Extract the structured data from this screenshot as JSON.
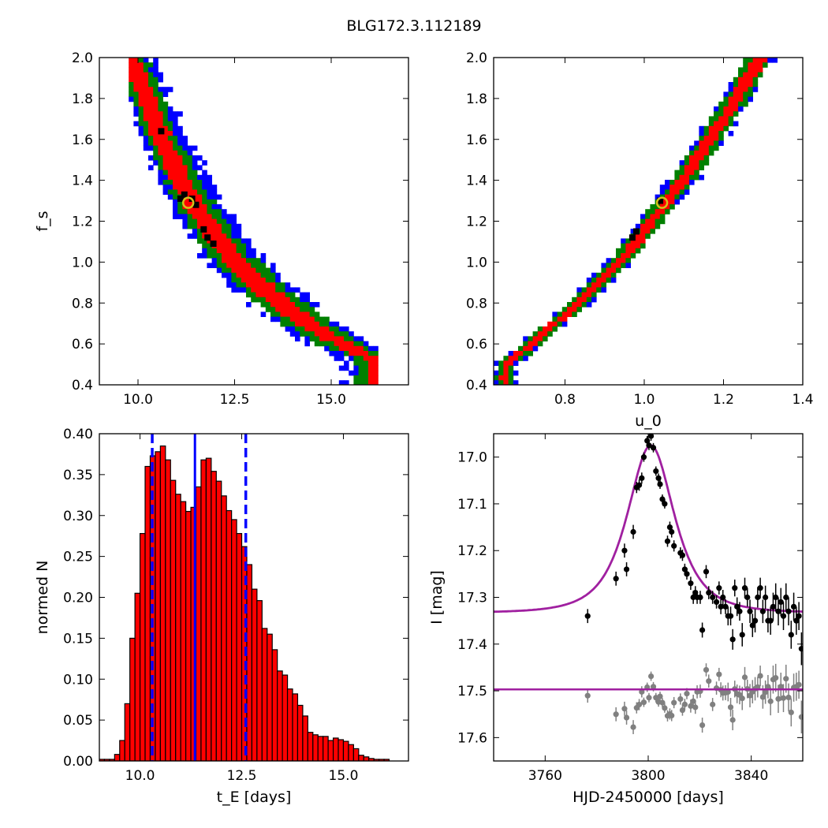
{
  "figure": {
    "title": "BLG172.3.112189"
  },
  "colors": {
    "sigma3": "#0000ff",
    "sigma2": "#008000",
    "sigma1": "#ff0000",
    "best": "#000000",
    "marker": "#d4c31a",
    "hist": "#ff0000",
    "median": "#0000ff",
    "model": "#a020a0",
    "points": "#000000",
    "residuals": "#808080"
  },
  "chart_data": [
    {
      "id": "tE_fs",
      "type": "heatmap",
      "title": "",
      "xlabel": "",
      "ylabel": "f_s",
      "xlim": [
        9.0,
        17.0
      ],
      "ylim": [
        0.4,
        2.0
      ],
      "xticks": [
        10.0,
        12.5,
        15.0
      ],
      "xtick_labels": [
        "10.0",
        "12.5",
        "15.0"
      ],
      "yticks": [
        0.4,
        0.6,
        0.8,
        1.0,
        1.2,
        1.4,
        1.6,
        1.8,
        2.0
      ],
      "ytick_labels": [
        "0.4",
        "0.6",
        "0.8",
        "1.0",
        "1.2",
        "1.4",
        "1.6",
        "1.8",
        "2.0"
      ],
      "ridge": {
        "x": [
          9.8,
          10.0,
          10.3,
          10.6,
          11.0,
          11.4,
          11.8,
          12.3,
          12.8,
          13.3,
          13.8,
          14.4,
          15.0,
          15.6,
          16.2
        ],
        "y": [
          2.0,
          1.9,
          1.75,
          1.6,
          1.45,
          1.3,
          1.18,
          1.05,
          0.95,
          0.86,
          0.78,
          0.7,
          0.63,
          0.57,
          0.52
        ],
        "half_width_sigma1": [
          0.18,
          0.22,
          0.25,
          0.27,
          0.27,
          0.28,
          0.28,
          0.3,
          0.3,
          0.3,
          0.32,
          0.32,
          0.3,
          0.25,
          0.2
        ],
        "half_width_sigma2": [
          0.32,
          0.38,
          0.42,
          0.45,
          0.45,
          0.48,
          0.5,
          0.52,
          0.55,
          0.58,
          0.6,
          0.62,
          0.6,
          0.55,
          0.45
        ],
        "half_width_sigma3": [
          0.42,
          0.5,
          0.55,
          0.6,
          0.62,
          0.65,
          0.7,
          0.72,
          0.75,
          0.78,
          0.82,
          0.85,
          0.85,
          0.8,
          0.7
        ]
      },
      "best_points": [
        [
          11.2,
          1.33
        ],
        [
          11.4,
          1.31
        ],
        [
          11.5,
          1.28
        ],
        [
          11.7,
          1.16
        ],
        [
          11.8,
          1.12
        ],
        [
          11.95,
          1.09
        ],
        [
          10.6,
          1.64
        ],
        [
          11.1,
          1.31
        ]
      ],
      "marker": {
        "x": 11.3,
        "y": 1.29
      }
    },
    {
      "id": "u0_fs",
      "type": "heatmap",
      "title": "",
      "xlabel": "u_0",
      "ylabel": "",
      "xlim": [
        0.62,
        1.4
      ],
      "ylim": [
        0.4,
        2.0
      ],
      "xticks": [
        0.8,
        1.0,
        1.2,
        1.4
      ],
      "xtick_labels": [
        "0.8",
        "1.0",
        "1.2",
        "1.4"
      ],
      "yticks": [
        0.4,
        0.6,
        0.8,
        1.0,
        1.2,
        1.4,
        1.6,
        1.8,
        2.0
      ],
      "ytick_labels": [
        "0.4",
        "0.6",
        "0.8",
        "1.0",
        "1.2",
        "1.4",
        "1.6",
        "1.8",
        "2.0"
      ],
      "ridge": {
        "x": [
          0.65,
          0.7,
          0.75,
          0.8,
          0.85,
          0.9,
          0.95,
          1.0,
          1.05,
          1.1,
          1.15,
          1.2,
          1.25,
          1.29
        ],
        "y": [
          0.5,
          0.57,
          0.66,
          0.74,
          0.83,
          0.93,
          1.03,
          1.15,
          1.28,
          1.41,
          1.55,
          1.7,
          1.86,
          2.0
        ],
        "half_width_sigma1": [
          0.012,
          0.012,
          0.012,
          0.012,
          0.013,
          0.013,
          0.014,
          0.014,
          0.015,
          0.015,
          0.016,
          0.016,
          0.017,
          0.017
        ],
        "half_width_sigma2": [
          0.022,
          0.022,
          0.022,
          0.023,
          0.023,
          0.024,
          0.025,
          0.026,
          0.027,
          0.028,
          0.03,
          0.03,
          0.032,
          0.032
        ],
        "half_width_sigma3": [
          0.026,
          0.026,
          0.026,
          0.027,
          0.028,
          0.029,
          0.03,
          0.031,
          0.032,
          0.034,
          0.036,
          0.036,
          0.038,
          0.038
        ]
      },
      "best_points": [
        [
          1.04,
          1.3
        ],
        [
          0.97,
          1.12
        ],
        [
          0.98,
          1.15
        ]
      ],
      "marker": {
        "x": 1.045,
        "y": 1.29
      }
    },
    {
      "id": "tE_hist",
      "type": "bar",
      "title": "",
      "xlabel": "t_E [days]",
      "ylabel": "normed N",
      "xlim": [
        9.0,
        16.6
      ],
      "ylim": [
        0.0,
        0.4
      ],
      "xticks": [
        10.0,
        12.5,
        15.0
      ],
      "xtick_labels": [
        "10.0",
        "12.5",
        "15.0"
      ],
      "yticks": [
        0.0,
        0.05,
        0.1,
        0.15,
        0.2,
        0.25,
        0.3,
        0.35,
        0.4
      ],
      "ytick_labels": [
        "0.00",
        "0.05",
        "0.10",
        "0.15",
        "0.20",
        "0.25",
        "0.30",
        "0.35",
        "0.40"
      ],
      "bin_start": 9.0,
      "bin_width": 0.125,
      "values": [
        0.002,
        0.002,
        0.002,
        0.008,
        0.025,
        0.07,
        0.15,
        0.205,
        0.278,
        0.36,
        0.373,
        0.378,
        0.385,
        0.368,
        0.343,
        0.326,
        0.317,
        0.305,
        0.31,
        0.335,
        0.368,
        0.37,
        0.354,
        0.342,
        0.324,
        0.306,
        0.295,
        0.278,
        0.262,
        0.24,
        0.21,
        0.196,
        0.162,
        0.155,
        0.136,
        0.11,
        0.105,
        0.088,
        0.082,
        0.068,
        0.055,
        0.035,
        0.032,
        0.03,
        0.03,
        0.025,
        0.028,
        0.026,
        0.024,
        0.02,
        0.015,
        0.007,
        0.005,
        0.003,
        0.002,
        0.002,
        0.002
      ],
      "median": 11.35,
      "lower": 10.3,
      "upper": 12.6
    },
    {
      "id": "lightcurve",
      "type": "scatter",
      "title": "",
      "xlabel": "HJD-2450000 [days]",
      "ylabel": "I [mag]",
      "xlim": [
        3740,
        3860
      ],
      "ylim": [
        17.65,
        16.95
      ],
      "xticks": [
        3760,
        3800,
        3840
      ],
      "xtick_labels": [
        "3760",
        "3800",
        "3840"
      ],
      "yticks": [
        17.0,
        17.1,
        17.2,
        17.3,
        17.4,
        17.5,
        17.6
      ],
      "ytick_labels": [
        "17.0",
        "17.1",
        "17.2",
        "17.3",
        "17.4",
        "17.5",
        "17.6"
      ],
      "model": {
        "t0": 3801,
        "u0": 1.05,
        "tE": 11.3,
        "base": 17.333,
        "peak": 16.975
      },
      "residual_level": 17.497,
      "points": [
        [
          3776.5,
          17.34,
          0.015
        ],
        [
          3787.5,
          17.26,
          0.015
        ],
        [
          3790.8,
          17.2,
          0.015
        ],
        [
          3791.6,
          17.24,
          0.015
        ],
        [
          3794.2,
          17.16,
          0.015
        ],
        [
          3795.5,
          17.065,
          0.012
        ],
        [
          3796.5,
          17.06,
          0.012
        ],
        [
          3797.5,
          17.045,
          0.012
        ],
        [
          3798.3,
          17.0,
          0.01
        ],
        [
          3799.6,
          16.965,
          0.01
        ],
        [
          3800.3,
          16.975,
          0.01
        ],
        [
          3801.1,
          16.955,
          0.01
        ],
        [
          3802.0,
          16.98,
          0.01
        ],
        [
          3803.0,
          17.03,
          0.01
        ],
        [
          3804.0,
          17.045,
          0.01
        ],
        [
          3804.6,
          17.058,
          0.01
        ],
        [
          3805.5,
          17.09,
          0.01
        ],
        [
          3806.4,
          17.1,
          0.01
        ],
        [
          3807.5,
          17.18,
          0.012
        ],
        [
          3808.4,
          17.15,
          0.012
        ],
        [
          3809.1,
          17.16,
          0.012
        ],
        [
          3810.0,
          17.19,
          0.012
        ],
        [
          3812.5,
          17.205,
          0.012
        ],
        [
          3813.3,
          17.21,
          0.012
        ],
        [
          3814.2,
          17.24,
          0.012
        ],
        [
          3815.0,
          17.25,
          0.012
        ],
        [
          3816.5,
          17.27,
          0.014
        ],
        [
          3817.5,
          17.3,
          0.014
        ],
        [
          3818.3,
          17.29,
          0.014
        ],
        [
          3819.0,
          17.3,
          0.014
        ],
        [
          3820.2,
          17.3,
          0.014
        ],
        [
          3821.0,
          17.37,
          0.016
        ],
        [
          3822.5,
          17.245,
          0.014
        ],
        [
          3823.5,
          17.29,
          0.014
        ],
        [
          3825.0,
          17.3,
          0.014
        ],
        [
          3826.5,
          17.31,
          0.014
        ],
        [
          3827.5,
          17.28,
          0.014
        ],
        [
          3828.2,
          17.32,
          0.016
        ],
        [
          3829.0,
          17.3,
          0.016
        ],
        [
          3830.0,
          17.32,
          0.016
        ],
        [
          3831.0,
          17.34,
          0.02
        ],
        [
          3832.0,
          17.34,
          0.02
        ],
        [
          3832.8,
          17.39,
          0.022
        ],
        [
          3833.6,
          17.28,
          0.018
        ],
        [
          3834.5,
          17.32,
          0.02
        ],
        [
          3835.5,
          17.33,
          0.02
        ],
        [
          3836.5,
          17.38,
          0.025
        ],
        [
          3837.5,
          17.28,
          0.022
        ],
        [
          3838.5,
          17.3,
          0.02
        ],
        [
          3839.5,
          17.33,
          0.025
        ],
        [
          3840.5,
          17.36,
          0.025
        ],
        [
          3841.5,
          17.35,
          0.025
        ],
        [
          3842.5,
          17.3,
          0.022
        ],
        [
          3843.5,
          17.28,
          0.022
        ],
        [
          3844.5,
          17.33,
          0.025
        ],
        [
          3845.5,
          17.3,
          0.025
        ],
        [
          3846.5,
          17.35,
          0.025
        ],
        [
          3847.5,
          17.35,
          0.03
        ],
        [
          3848.5,
          17.32,
          0.03
        ],
        [
          3849.5,
          17.3,
          0.03
        ],
        [
          3850.5,
          17.33,
          0.03
        ],
        [
          3851.5,
          17.31,
          0.03
        ],
        [
          3852.5,
          17.34,
          0.03
        ],
        [
          3853.5,
          17.3,
          0.03
        ],
        [
          3854.5,
          17.33,
          0.03
        ],
        [
          3855.5,
          17.38,
          0.03
        ],
        [
          3856.5,
          17.32,
          0.03
        ],
        [
          3857.5,
          17.35,
          0.03
        ],
        [
          3858.5,
          17.34,
          0.03
        ],
        [
          3859.5,
          17.41,
          0.035
        ]
      ]
    }
  ]
}
